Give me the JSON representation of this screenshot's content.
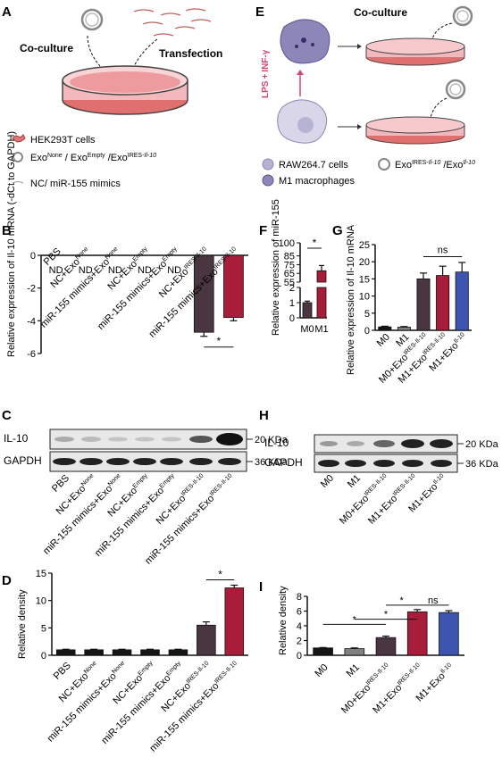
{
  "panel_letters": {
    "A": "A",
    "B": "B",
    "C": "C",
    "D": "D",
    "E": "E",
    "F": "F",
    "G": "G",
    "H": "H",
    "I": "I"
  },
  "schematic_A": {
    "coculture": "Co-culture",
    "transfection": "Transfection",
    "legend": [
      "HEK293T cells",
      "Exo",
      "NC/ miR-155 mimics"
    ],
    "exo_parts": [
      "None",
      " / Exo",
      "Empty",
      " /Exo",
      "IRES-",
      "Il-10"
    ]
  },
  "schematic_E": {
    "coculture": "Co-culture",
    "lps": "LPS",
    "plus": "+",
    "infg": "INF-γ",
    "legend": [
      "RAW264.7 cells",
      "M1 macrophages",
      "Exo",
      " /Exo"
    ],
    "exo_parts": [
      "IRES-",
      "Il-10",
      "Il-10"
    ]
  },
  "colors": {
    "dark": "#4a3640",
    "red": "#a81d3a",
    "blue": "#3c55b0",
    "black": "#151515",
    "grey": "#808080",
    "pink": "#f2b8bc"
  },
  "western_C": {
    "bands": [
      "IL-10",
      "GAPDH"
    ],
    "sizes": [
      "20 KDa",
      "36 KDa"
    ]
  },
  "western_H": {
    "bands": [
      "IL-10",
      "GAPDH"
    ],
    "sizes": [
      "20 KDa",
      "36 KDa"
    ]
  },
  "group_labels_BCD": [
    {
      "t": "PBS",
      "sup": ""
    },
    {
      "t": "NC+Exo",
      "sup": "None"
    },
    {
      "t": "miR-155 mimics+Exo",
      "sup": "None"
    },
    {
      "t": "NC+Exo",
      "sup": "Empty"
    },
    {
      "t": "miR-155 mimics+Exo",
      "sup": "Empty"
    },
    {
      "t": "NC+Exo",
      "sup": "IRES-Il-10"
    },
    {
      "t": "miR-155 mimics+Exo",
      "sup": "IRES-Il-10"
    }
  ],
  "group_labels_GHI": [
    {
      "t": "M0",
      "sup": ""
    },
    {
      "t": "M1",
      "sup": ""
    },
    {
      "t": "M0+Exo",
      "sup": "IRES-Il-10"
    },
    {
      "t": "M1+Exo",
      "sup": "IRES-Il-10"
    },
    {
      "t": "M1+Exo",
      "sup": "Il-10"
    }
  ],
  "chart_data": [
    {
      "panel": "B",
      "type": "bar",
      "ylabel": "Relative expression of Il-10 mRNA (-dCt to GAPDH)",
      "ylim": [
        -6,
        0
      ],
      "yticks": [
        0,
        -2,
        -4,
        -6
      ],
      "categories": [
        "PBS",
        "NC+ExoNone",
        "miR-155 mimics+ExoNone",
        "NC+ExoEmpty",
        "miR-155 mimics+ExoEmpty",
        "NC+ExoIRES-Il-10",
        "miR-155 mimics+ExoIRES-Il-10"
      ],
      "values": [
        null,
        null,
        null,
        null,
        null,
        -4.7,
        -3.8
      ],
      "errors": [
        0,
        0,
        0,
        0,
        0,
        0.25,
        0.2
      ],
      "nd_label": "ND",
      "colors": [
        "#4a3640",
        "#a81d3a"
      ],
      "significance": [
        {
          "bars": [
            5,
            6
          ],
          "label": "*"
        }
      ]
    },
    {
      "panel": "D",
      "type": "bar",
      "ylabel": "Relative density",
      "ylim": [
        0,
        15
      ],
      "yticks": [
        0,
        5,
        10,
        15
      ],
      "categories": [
        "PBS",
        "NC+ExoNone",
        "miR-155 mimics+ExoNone",
        "NC+ExoEmpty",
        "miR-155 mimics+ExoEmpty",
        "NC+ExoIRES-Il-10",
        "miR-155 mimics+ExoIRES-Il-10"
      ],
      "values": [
        1.0,
        1.0,
        1.0,
        1.0,
        1.0,
        5.5,
        12.3
      ],
      "errors": [
        0.1,
        0.1,
        0.1,
        0.1,
        0.1,
        0.6,
        0.5
      ],
      "colors": [
        "#151515",
        "#151515",
        "#151515",
        "#151515",
        "#151515",
        "#4a3640",
        "#a81d3a"
      ],
      "significance": [
        {
          "bars": [
            5,
            6
          ],
          "label": "*"
        }
      ]
    },
    {
      "panel": "F",
      "type": "bar",
      "ylabel": "Relative expression of miR-155",
      "y_axis_break": true,
      "yticks_low": [
        0,
        1,
        2
      ],
      "yticks_high": [
        55,
        65,
        75,
        85,
        100
      ],
      "categories": [
        "M0",
        "M1"
      ],
      "values": [
        1.0,
        68
      ],
      "errors": [
        0.1,
        6
      ],
      "colors": [
        "#4a3640",
        "#a81d3a"
      ],
      "significance": [
        {
          "bars": [
            0,
            1
          ],
          "label": "*"
        }
      ]
    },
    {
      "panel": "G",
      "type": "bar",
      "ylabel": "Relative expression of Il-10 mRNA",
      "ylim": [
        0,
        25
      ],
      "yticks": [
        0,
        5,
        10,
        15,
        20,
        25
      ],
      "categories": [
        "M0",
        "M1",
        "M0+ExoIRES-Il-10",
        "M1+ExoIRES-Il-10",
        "M1+ExoIl-10"
      ],
      "values": [
        1.0,
        0.9,
        15.0,
        16.0,
        17.0
      ],
      "errors": [
        0.2,
        0.2,
        1.7,
        2.7,
        2.8
      ],
      "colors": [
        "#151515",
        "#808080",
        "#4a3640",
        "#a81d3a",
        "#3c55b0"
      ],
      "significance": [
        {
          "bars": [
            2,
            4
          ],
          "label": "ns"
        }
      ]
    },
    {
      "panel": "I",
      "type": "bar",
      "ylabel": "Relative density",
      "ylim": [
        0,
        8
      ],
      "yticks": [
        0,
        2,
        4,
        6,
        8
      ],
      "categories": [
        "M0",
        "M1",
        "M0+ExoIRES-Il-10",
        "M1+ExoIRES-Il-10",
        "M1+ExoIl-10"
      ],
      "values": [
        1.0,
        0.9,
        2.4,
        5.9,
        5.8
      ],
      "errors": [
        0.05,
        0.1,
        0.2,
        0.3,
        0.25
      ],
      "colors": [
        "#151515",
        "#808080",
        "#4a3640",
        "#a81d3a",
        "#3c55b0"
      ],
      "significance": [
        {
          "bars": [
            0,
            2
          ],
          "label": "*"
        },
        {
          "bars": [
            1,
            3
          ],
          "label": "*"
        },
        {
          "bars": [
            2,
            3
          ],
          "label": "*"
        },
        {
          "bars": [
            3,
            4
          ],
          "label": "ns"
        }
      ]
    }
  ]
}
